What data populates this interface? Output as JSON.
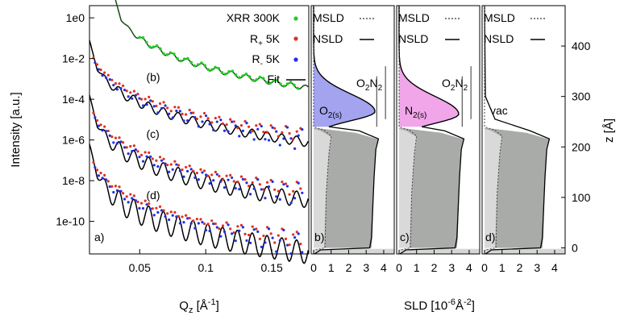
{
  "chart_data": [
    {
      "panel_label": "a)",
      "type": "scatter",
      "ylabel": "Intensity [a.u.]",
      "xlabel_main": "Q",
      "xlabel_sub": "z",
      "xlabel_unit": " [Å",
      "xlabel_sup": "-1",
      "xlabel_close": "]",
      "ylog": true,
      "ylim": [
        1e-12,
        10
      ],
      "xlim": [
        0.01,
        0.18
      ],
      "x_ticks": [
        "0.05",
        "0.1",
        "0.15"
      ],
      "x_tick_vals": [
        0.05,
        0.1,
        0.15
      ],
      "y_ticks": [
        "1e0",
        "1e-2",
        "1e-4",
        "1e-6",
        "1e-8",
        "1e-10"
      ],
      "y_tick_vals": [
        0,
        -2,
        -4,
        -6,
        -8,
        -10
      ],
      "legend": [
        {
          "label_main": "XRR 300K",
          "label_sub": "",
          "label_rest": "",
          "color": "#22cc22",
          "kind": "dot"
        },
        {
          "label_main": "R",
          "label_sub": "+",
          "label_rest": " 5K",
          "color": "#e03020",
          "kind": "dot"
        },
        {
          "label_main": "R",
          "label_sub": "-",
          "label_rest": " 5K",
          "color": "#2030e0",
          "kind": "dot"
        },
        {
          "label_main": "Fit",
          "label_sub": "",
          "label_rest": "",
          "color": "#000000",
          "kind": "line"
        }
      ],
      "curve_labels": [
        {
          "text": "(b)",
          "x": 0.055,
          "logy": -3.1
        },
        {
          "text": "(c)",
          "x": 0.055,
          "logy": -5.9
        },
        {
          "text": "(d)",
          "x": 0.055,
          "logy": -8.9
        }
      ],
      "series": [
        {
          "name": "XRR 300K",
          "offset": 0.5,
          "start": 0.03,
          "color": "#22cc22"
        },
        {
          "name": "b",
          "offset": -1.9,
          "start": 0.012
        },
        {
          "name": "c",
          "offset": -4.6,
          "start": 0.012
        },
        {
          "name": "d",
          "offset": -7.0,
          "start": 0.012
        }
      ]
    },
    {
      "panel_label": "b)",
      "type": "area",
      "xlim": [
        0,
        4.6
      ],
      "zlim": [
        -10,
        480
      ],
      "x_ticks": [
        "0",
        "1",
        "2",
        "3",
        "4"
      ],
      "legend": [
        {
          "label": "MSLD",
          "dash": true
        },
        {
          "label": "NSLD",
          "dash": false
        }
      ],
      "layer_label_main": "O",
      "layer_label_sub": "2(s)",
      "top_labels": [
        "O",
        "2",
        "N",
        "2"
      ],
      "fill_color": "#9999ee",
      "peak_z": 270,
      "peak_sld": 3.5
    },
    {
      "panel_label": "c)",
      "type": "area",
      "xlim": [
        0,
        4.6
      ],
      "zlim": [
        -10,
        480
      ],
      "x_ticks": [
        "0",
        "1",
        "2",
        "3",
        "4"
      ],
      "legend": [
        {
          "label": "MSLD",
          "dash": true
        },
        {
          "label": "NSLD",
          "dash": false
        }
      ],
      "layer_label_main": "N",
      "layer_label_sub": "2(s)",
      "top_labels": [
        "O",
        "2",
        "N",
        "2"
      ],
      "fill_color": "#f09ce8",
      "peak_z": 265,
      "peak_sld": 3.4
    },
    {
      "panel_label": "d)",
      "type": "area",
      "xlim": [
        0,
        4.6
      ],
      "zlim": [
        -10,
        480
      ],
      "x_ticks": [
        "0",
        "1",
        "2",
        "3",
        "4"
      ],
      "legend": [
        {
          "label": "MSLD",
          "dash": true
        },
        {
          "label": "NSLD",
          "dash": false
        }
      ],
      "layer_label_main": "vac",
      "layer_label_sub": "",
      "top_labels": [],
      "fill_color": "#ffffff",
      "peak_z": 0,
      "peak_sld": 0
    }
  ],
  "shared": {
    "sld_xlabel_main": "SLD [10",
    "sld_xlabel_sup1": "-6",
    "sld_xlabel_mid": "Å",
    "sld_xlabel_sup2": "-2",
    "sld_xlabel_close": "]",
    "z_label": "z [Å]",
    "z_ticks": [
      "0",
      "100",
      "200",
      "300",
      "400"
    ],
    "z_tick_vals": [
      0,
      100,
      200,
      300,
      400
    ]
  }
}
